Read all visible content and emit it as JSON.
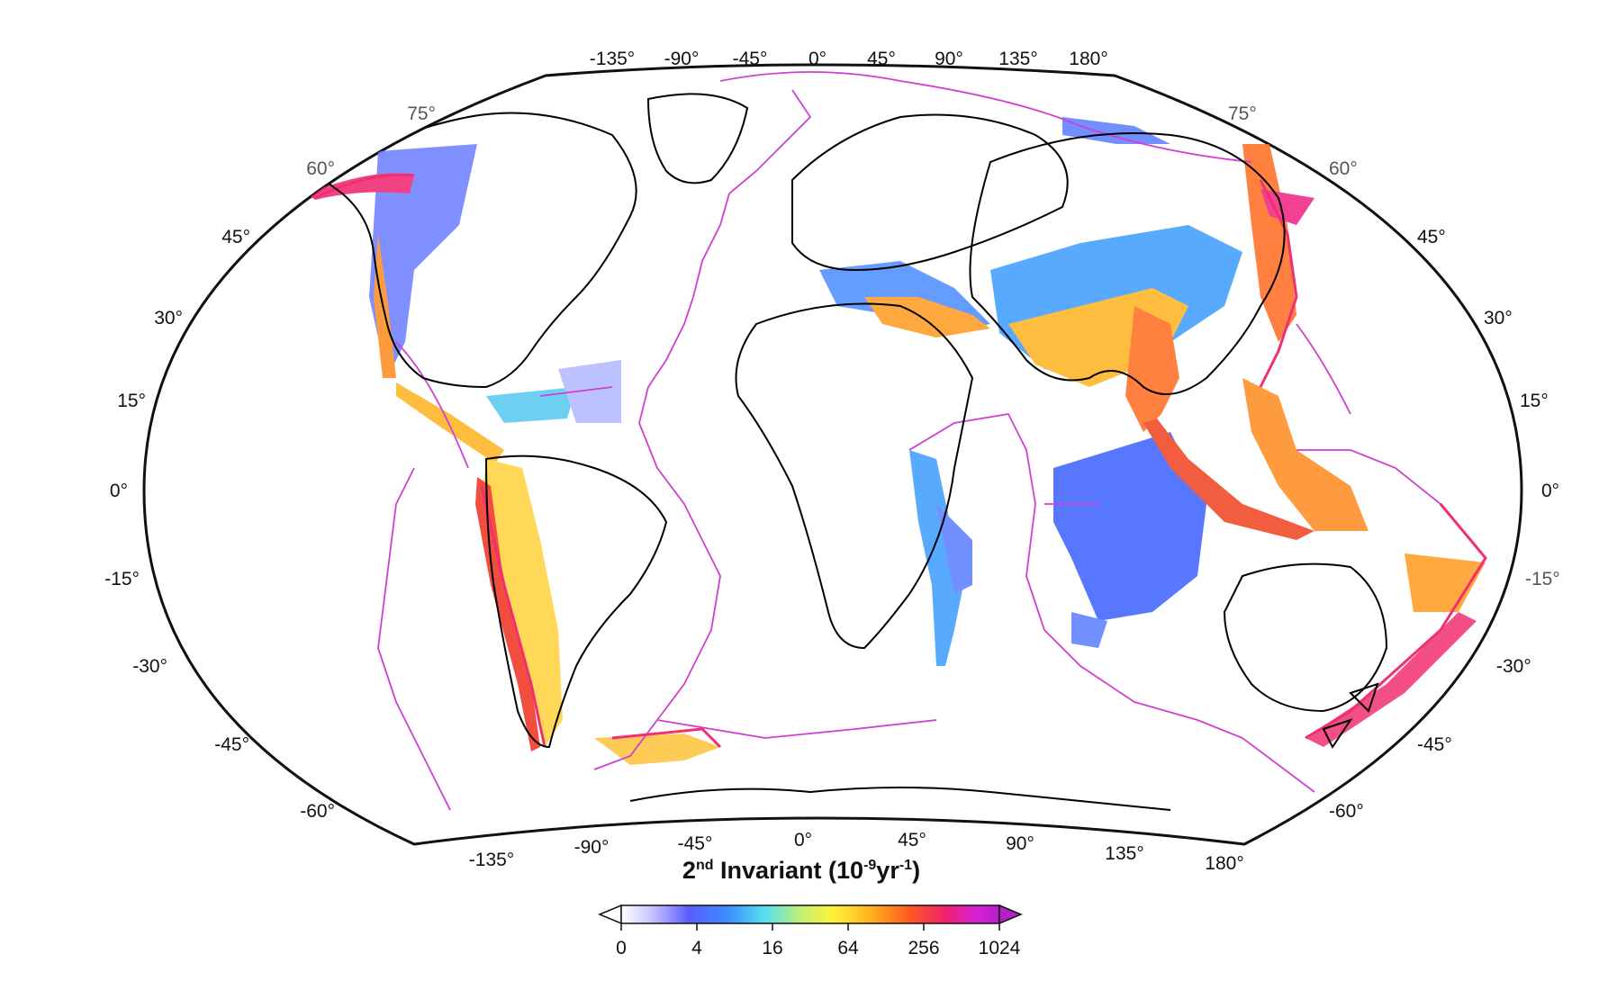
{
  "map": {
    "projection": "Winkel-style world map (Pacific-centered view not used; 0° in center)",
    "title": {
      "ordinal": "2",
      "ordinal_sup": "nd",
      "main": " Invariant (10",
      "exp1": "-9",
      "mid": "yr",
      "exp2": "-1",
      "end": ")"
    },
    "top_lon_labels": [
      "-135°",
      "-90°",
      "-45°",
      "0°",
      "45°",
      "90°",
      "135°",
      "180°"
    ],
    "bottom_lon_labels": [
      "-135°",
      "-90°",
      "-45°",
      "0°",
      "45°",
      "90°",
      "135°",
      "180°"
    ],
    "left_lat_labels": [
      "75°",
      "60°",
      "45°",
      "30°",
      "15°",
      "0°",
      "-15°",
      "-30°",
      "-45°",
      "-60°"
    ],
    "right_lat_labels": [
      "75°",
      "60°",
      "45°",
      "30°",
      "15°",
      "0°",
      "-15°",
      "-30°",
      "-45°",
      "-60°"
    ],
    "colorbar": {
      "labels": [
        "0",
        "4",
        "16",
        "64",
        "256",
        "1024"
      ],
      "scale": "logarithmic (base 4)",
      "colors": [
        "#ffffff",
        "#c9c4ff",
        "#5a5cff",
        "#3b8cff",
        "#54e0f0",
        "#c8f06c",
        "#fff23a",
        "#ffb21e",
        "#ff5a1e",
        "#f0206e",
        "#d820d8",
        "#b420c8"
      ]
    },
    "colors": {
      "coast": "#000000",
      "plate_boundary": "#d040d0",
      "frame": "#111111"
    }
  }
}
